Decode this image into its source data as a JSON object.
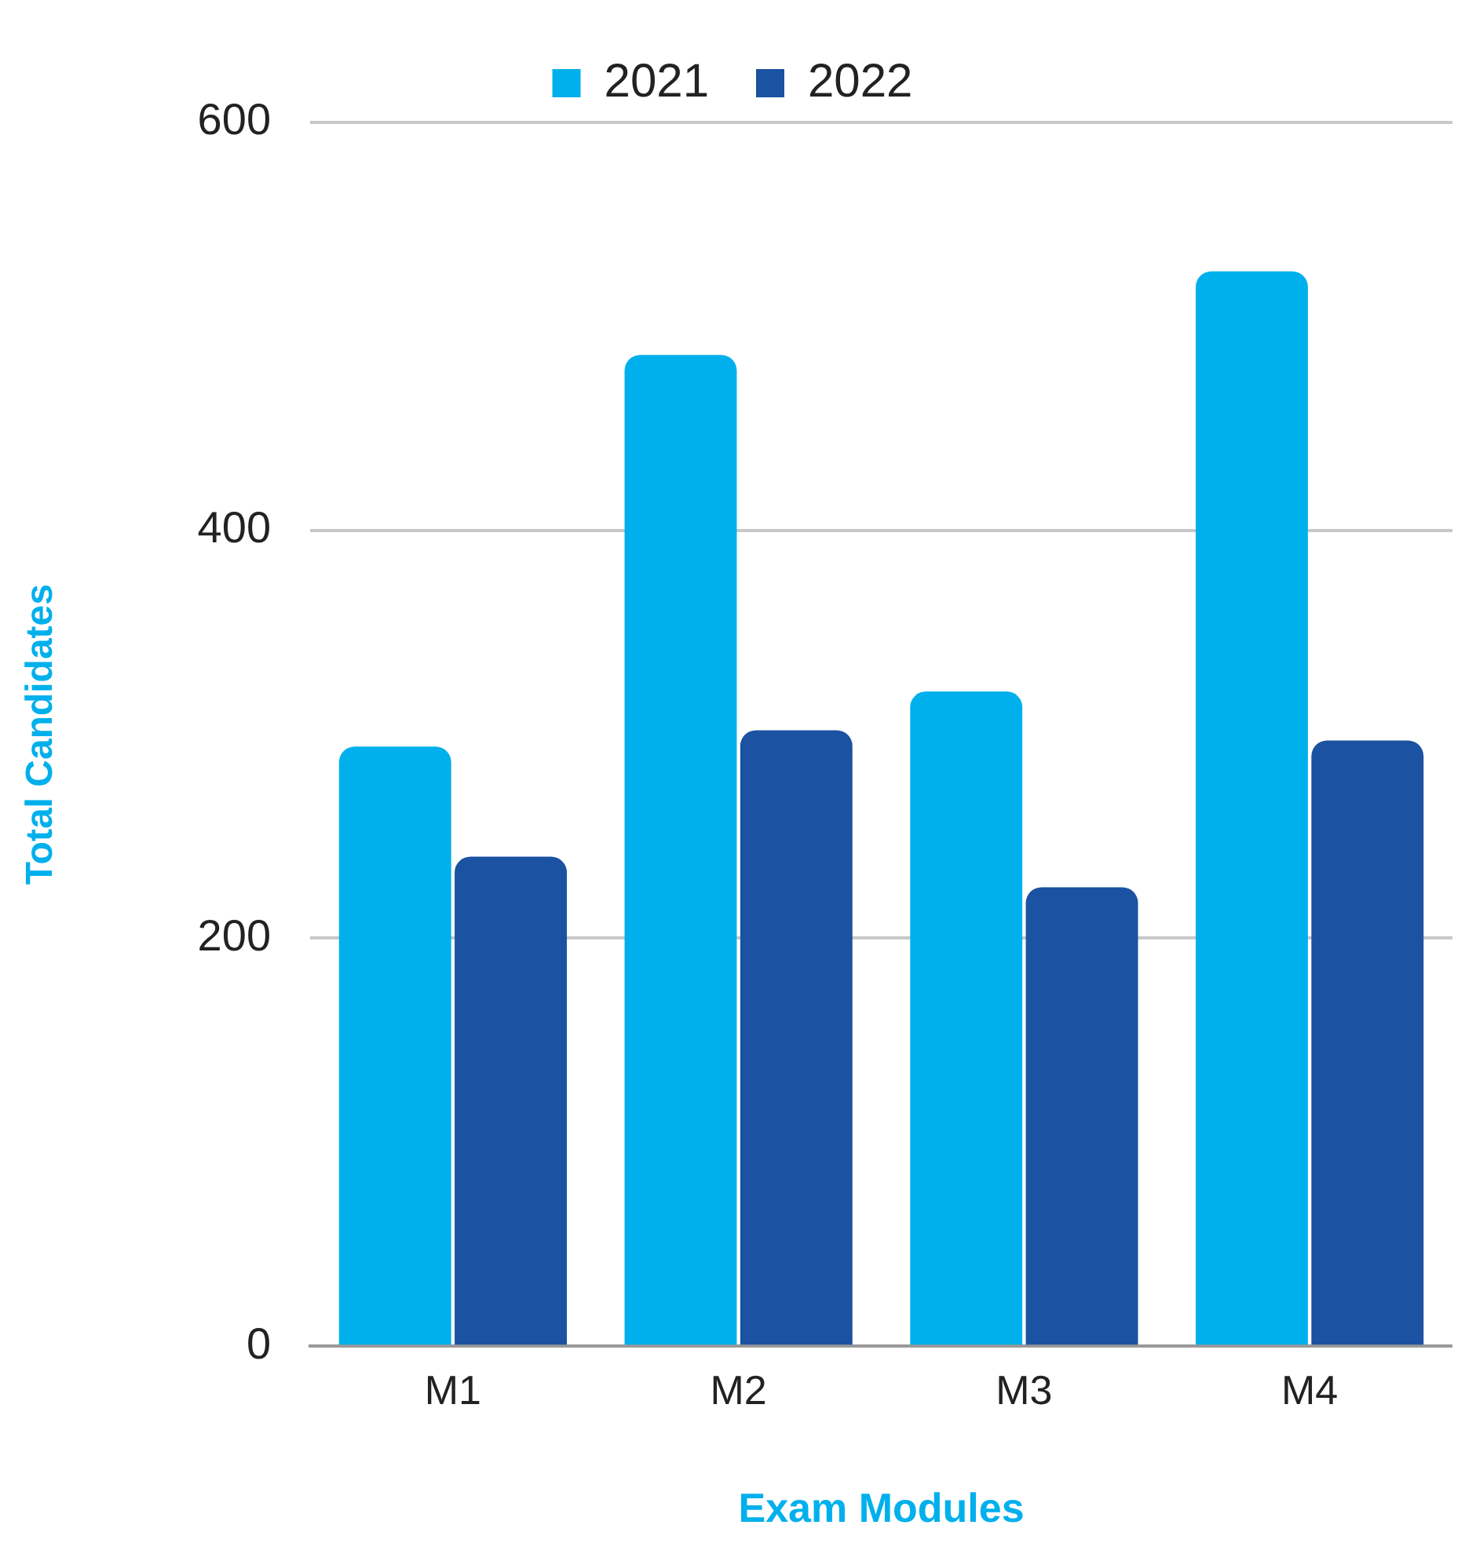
{
  "chart_data": {
    "type": "bar",
    "xlabel": "Exam Modules",
    "ylabel": "Total Candidates",
    "categories": [
      "M1",
      "M2",
      "M3",
      "M4"
    ],
    "series": [
      {
        "name": "2021",
        "color": "#00b0ec",
        "values": [
          294,
          486,
          321,
          527
        ]
      },
      {
        "name": "2022",
        "color": "#1b52a2",
        "values": [
          240,
          302,
          225,
          297
        ]
      }
    ],
    "ylim": [
      0,
      600
    ],
    "yticks": [
      0,
      200,
      400,
      600
    ],
    "grid": "y",
    "legend": "top"
  }
}
